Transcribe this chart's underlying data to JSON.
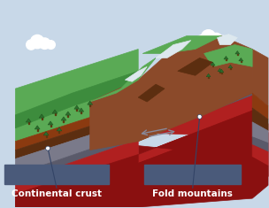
{
  "bg_color": "#c8d8e8",
  "label1": "Continental crust",
  "label2": "Fold mountains",
  "label_bg": "#4a5a7a",
  "label_text_color": "#ffffff",
  "label_fontsize": 7.5,
  "cloud_color": "#ffffff",
  "sky_color": "#c8d8e8",
  "grass_green": "#5aaa55",
  "dark_grass": "#3d8c3d",
  "mountain_brown": "#8b4a2a",
  "dark_brown": "#5c2e10",
  "rock_gray": "#8a8a9a",
  "snow_white": "#dde8ee",
  "soil_top": "#8B3A10",
  "soil_mid": "#6b2a08",
  "layer_gray": "#7a7a8a",
  "layer_dark_gray": "#5a5a6a",
  "layer_red": "#b02020",
  "layer_dark_red": "#8a1010",
  "arrow_gray": "#888898",
  "line_color": "#334466",
  "dot_color": "#ffffff"
}
